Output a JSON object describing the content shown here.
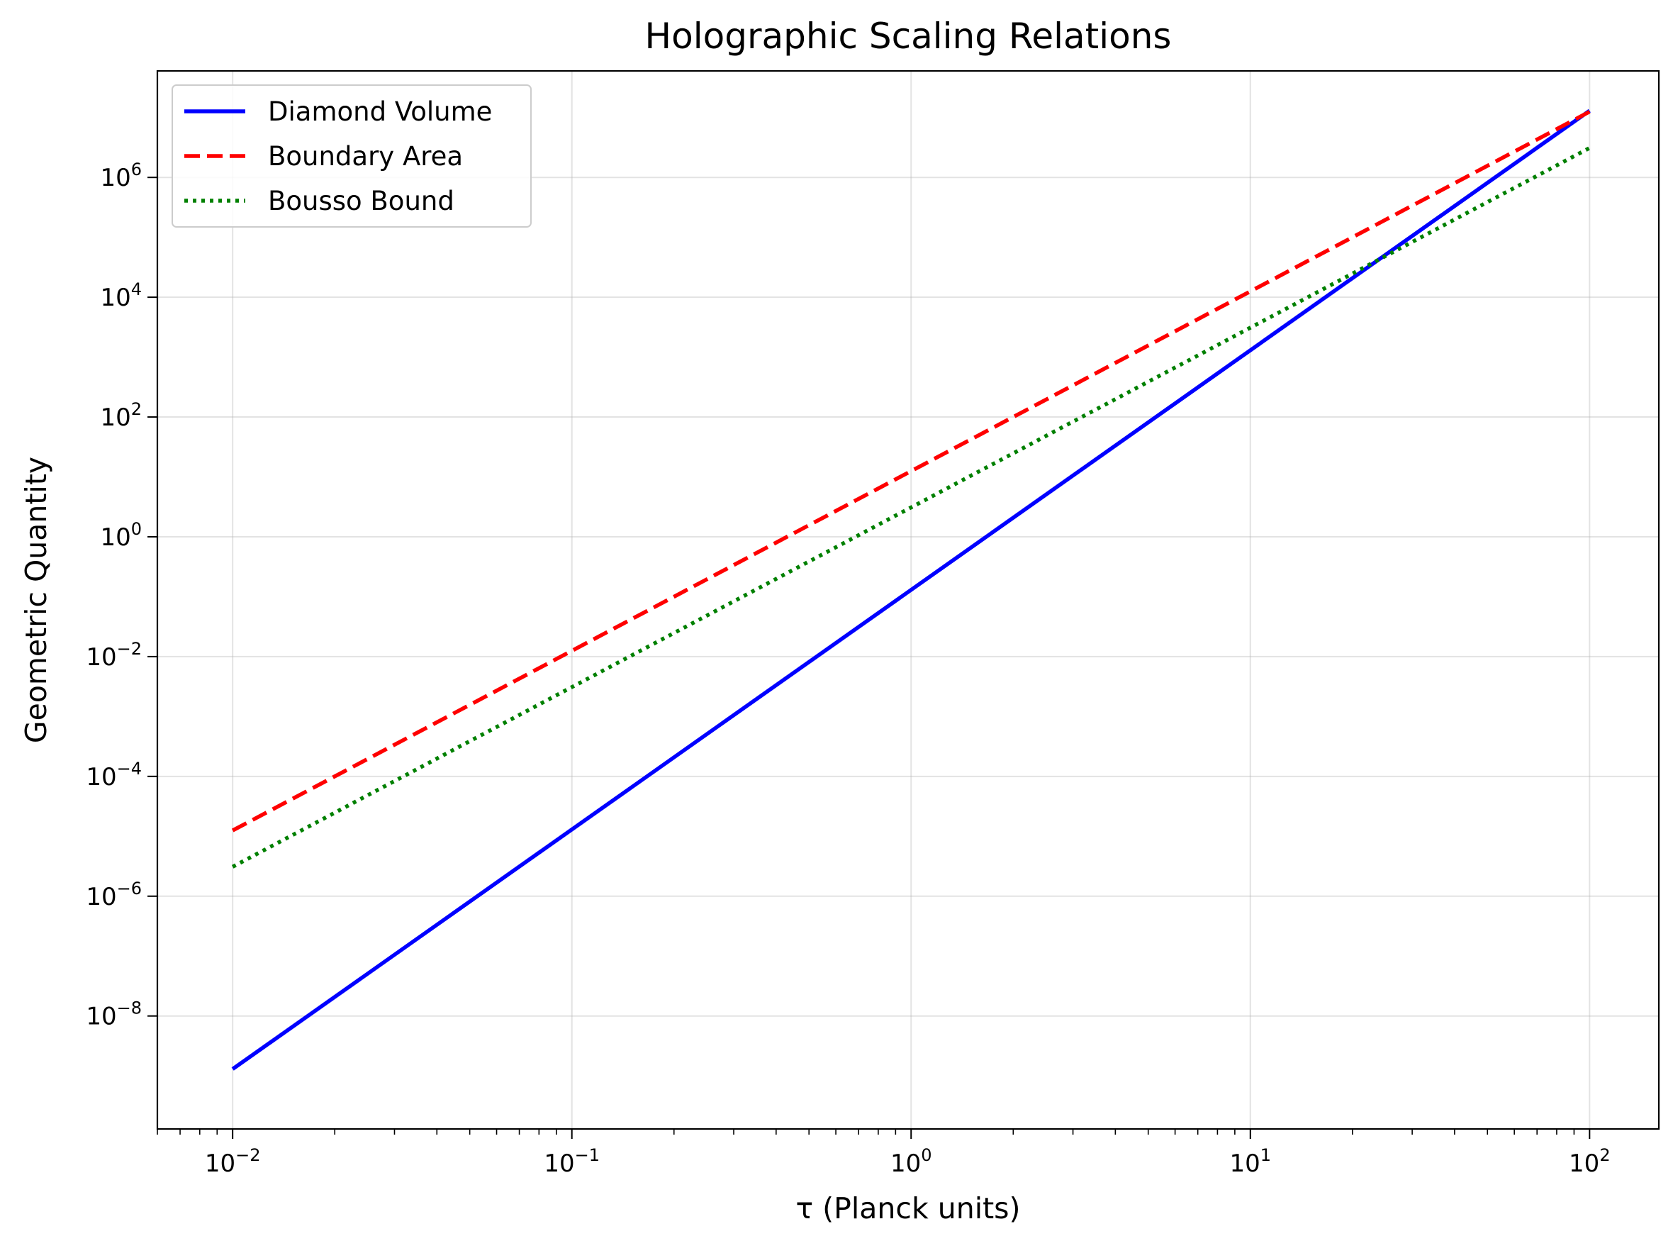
{
  "chart_data": {
    "type": "line",
    "title": "Holographic Scaling Relations",
    "xlabel": "τ (Planck units)",
    "ylabel": "Geometric Quantity",
    "xscale": "log",
    "yscale": "log",
    "xlim": [
      0.006,
      160
    ],
    "ylim": [
      1.3e-10,
      60000000.0
    ],
    "x_ticks": [
      {
        "value": 0.01,
        "base": "10",
        "exp": "−2"
      },
      {
        "value": 0.1,
        "base": "10",
        "exp": "−1"
      },
      {
        "value": 1,
        "base": "10",
        "exp": "0"
      },
      {
        "value": 10,
        "base": "10",
        "exp": "1"
      },
      {
        "value": 100,
        "base": "10",
        "exp": "2"
      }
    ],
    "y_ticks": [
      {
        "value": 1e-08,
        "base": "10",
        "exp": "−8"
      },
      {
        "value": 1e-06,
        "base": "10",
        "exp": "−6"
      },
      {
        "value": 0.0001,
        "base": "10",
        "exp": "−4"
      },
      {
        "value": 0.01,
        "base": "10",
        "exp": "−2"
      },
      {
        "value": 1,
        "base": "10",
        "exp": "0"
      },
      {
        "value": 100,
        "base": "10",
        "exp": "2"
      },
      {
        "value": 10000,
        "base": "10",
        "exp": "4"
      },
      {
        "value": 1000000,
        "base": "10",
        "exp": "6"
      }
    ],
    "grid": true,
    "legend_position": "upper-left",
    "series": [
      {
        "name": "Diamond Volume",
        "color": "#0000ff",
        "style": "solid",
        "x": [
          0.01,
          100
        ],
        "y": [
          1.3e-09,
          13000000.0
        ]
      },
      {
        "name": "Boundary Area",
        "color": "#ff0000",
        "style": "dashed",
        "x": [
          0.01,
          100
        ],
        "y": [
          1.25e-05,
          12500000.0
        ]
      },
      {
        "name": "Bousso Bound",
        "color": "#008000",
        "style": "dotted",
        "x": [
          0.01,
          100
        ],
        "y": [
          3.1e-06,
          3100000.0
        ]
      }
    ]
  }
}
